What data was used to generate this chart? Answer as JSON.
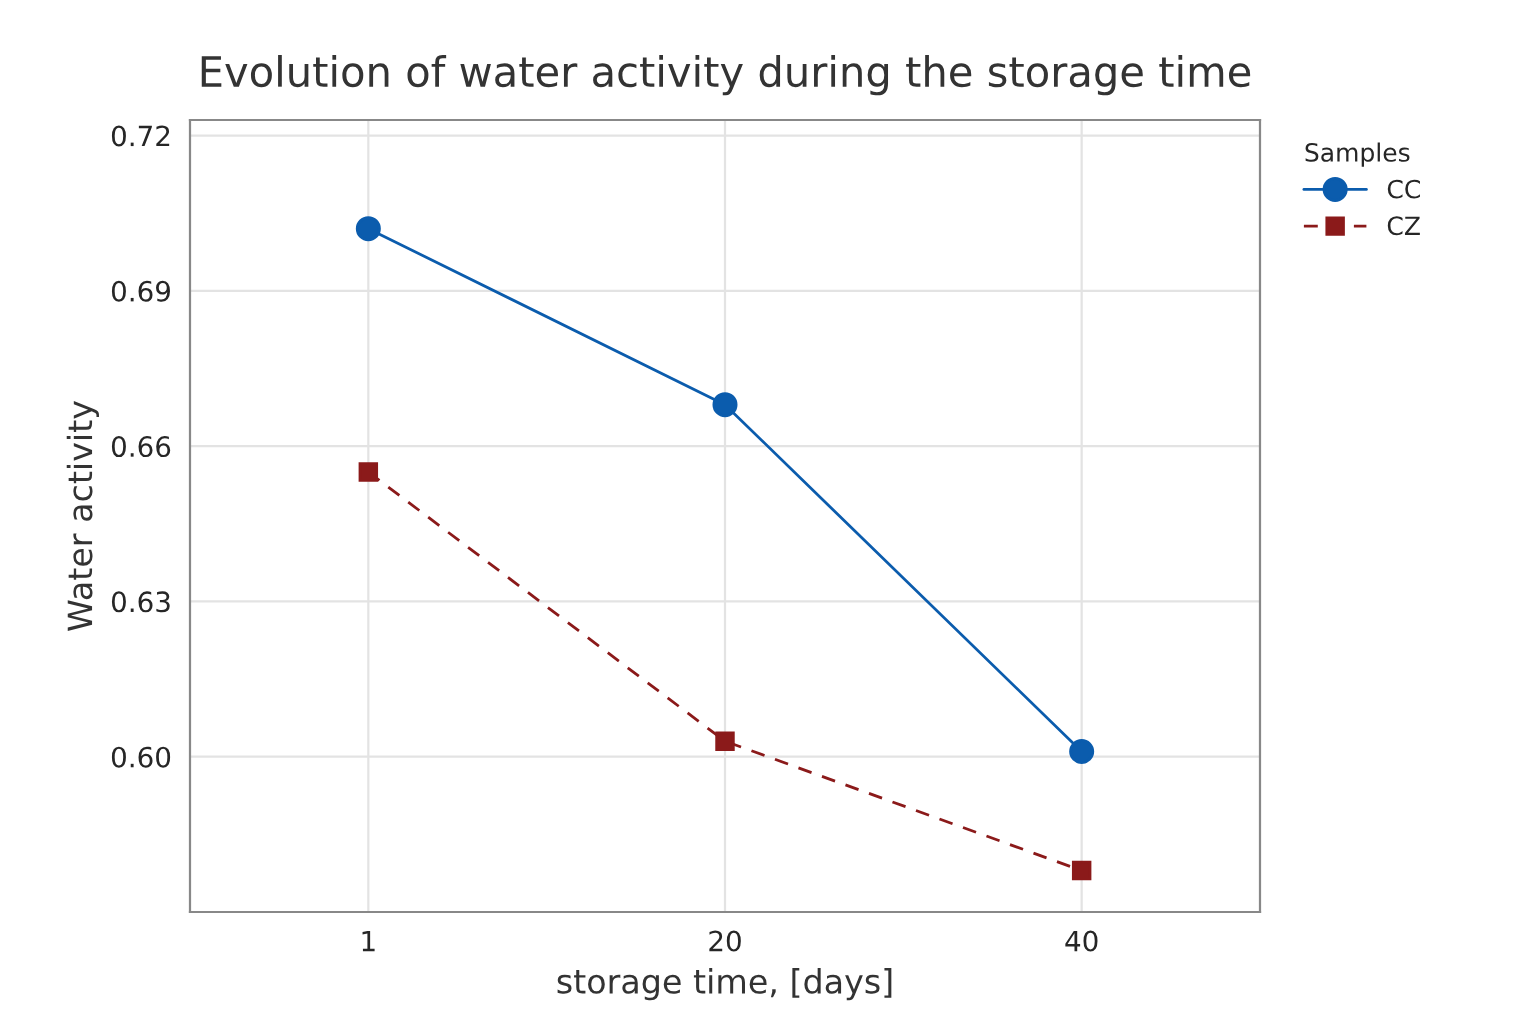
{
  "chart_data": {
    "type": "line",
    "title": "Evolution of water activity during the storage time",
    "xlabel": "storage time, [days]",
    "ylabel": "Water activity",
    "legend_title": "Samples",
    "categories": [
      "1",
      "20",
      "40"
    ],
    "series": [
      {
        "name": "CC",
        "color": "#0b5cad",
        "values": [
          0.702,
          0.668,
          0.601
        ],
        "marker": "circle",
        "line_style": "solid"
      },
      {
        "name": "CZ",
        "color": "#8b1a1a",
        "values": [
          0.655,
          0.603,
          0.578
        ],
        "marker": "square",
        "line_style": "dashed"
      }
    ],
    "ylim": [
      0.57,
      0.723
    ],
    "yticks": [
      {
        "value": 0.6,
        "label": "0.60"
      },
      {
        "value": 0.63,
        "label": "0.63"
      },
      {
        "value": 0.66,
        "label": "0.66"
      },
      {
        "value": 0.69,
        "label": "0.69"
      },
      {
        "value": 0.72,
        "label": "0.72"
      }
    ],
    "grid": true,
    "legend": "top right outside"
  }
}
